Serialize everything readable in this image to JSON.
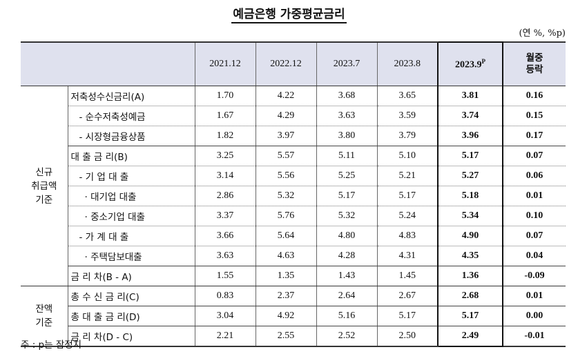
{
  "title": "예금은행 가중평균금리",
  "unit": "(연 %, %p)",
  "columns": [
    "2021.12",
    "2022.12",
    "2023.7",
    "2023.8",
    "2023.9",
    "월중 등락"
  ],
  "provisional_mark": "P",
  "change_header": [
    "월중",
    "등락"
  ],
  "groups": {
    "new": [
      "신규",
      "취급액",
      "기준"
    ],
    "balance": [
      "잔액",
      "기준"
    ]
  },
  "rows": [
    {
      "label": "저축성수신금리(A)",
      "values": [
        "1.70",
        "4.22",
        "3.68",
        "3.65",
        "3.81",
        "0.16"
      ]
    },
    {
      "label": "- 순수저축성예금",
      "values": [
        "1.67",
        "4.29",
        "3.63",
        "3.59",
        "3.74",
        "0.15"
      ]
    },
    {
      "label": "- 시장형금융상품",
      "values": [
        "1.82",
        "3.97",
        "3.80",
        "3.79",
        "3.96",
        "0.17"
      ]
    },
    {
      "label": "대 출 금 리(B)",
      "values": [
        "3.25",
        "5.57",
        "5.11",
        "5.10",
        "5.17",
        "0.07"
      ]
    },
    {
      "label": "- 기 업 대 출",
      "values": [
        "3.14",
        "5.56",
        "5.25",
        "5.21",
        "5.27",
        "0.06"
      ]
    },
    {
      "label": "· 대기업 대출",
      "values": [
        "2.86",
        "5.32",
        "5.17",
        "5.17",
        "5.18",
        "0.01"
      ]
    },
    {
      "label": "· 중소기업 대출",
      "values": [
        "3.37",
        "5.76",
        "5.32",
        "5.24",
        "5.34",
        "0.10"
      ]
    },
    {
      "label": "- 가 계 대 출",
      "values": [
        "3.66",
        "5.64",
        "4.80",
        "4.83",
        "4.90",
        "0.07"
      ]
    },
    {
      "label": "· 주택담보대출",
      "values": [
        "3.63",
        "4.63",
        "4.28",
        "4.31",
        "4.35",
        "0.04"
      ]
    },
    {
      "label": "금 리 차(B - A)",
      "values": [
        "1.55",
        "1.35",
        "1.43",
        "1.45",
        "1.36",
        "-0.09"
      ]
    },
    {
      "label": "총 수 신 금 리(C)",
      "values": [
        "0.83",
        "2.37",
        "2.64",
        "2.67",
        "2.68",
        "0.01"
      ]
    },
    {
      "label": "총 대 출 금 리(D)",
      "values": [
        "3.04",
        "4.92",
        "5.16",
        "5.17",
        "5.17",
        "0.00"
      ]
    },
    {
      "label": "금 리 차(D - C)",
      "values": [
        "2.21",
        "2.55",
        "2.52",
        "2.50",
        "2.49",
        "-0.01"
      ]
    }
  ],
  "note": "주 : p는 잠정치"
}
